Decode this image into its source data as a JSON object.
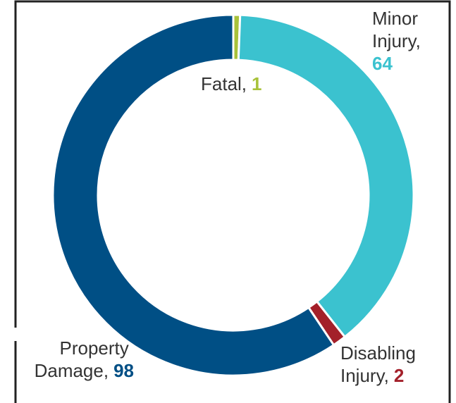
{
  "chart_data": {
    "type": "donut",
    "categories": [
      "Fatal,",
      "Minor Injury,",
      "Disabling Injury,",
      "Property Damage,"
    ],
    "values": [
      1,
      64,
      2,
      98
    ],
    "colors": [
      "#a8c23a",
      "#3bc2cf",
      "#a3202a",
      "#004f85"
    ]
  }
}
